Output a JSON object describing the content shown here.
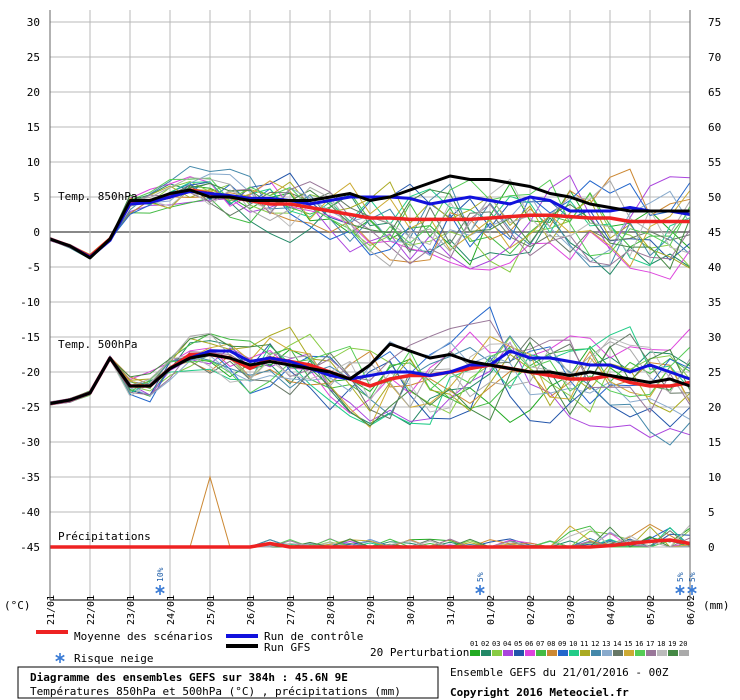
{
  "chart_data": {
    "type": "line",
    "title": "Diagramme des ensembles GEFS sur 384h : 45.6N 9E",
    "subtitle": "Températures 850hPa et 500hPa (°C) , précipitations (mm)",
    "run_info": "Ensemble GEFS du 21/01/2016 - 00Z",
    "copyright": "Copyright 2016 Meteociel.fr",
    "y_left_label": "(°C)",
    "y_right_label": "(mm)",
    "y_left_ticks": [
      "30",
      "25",
      "20",
      "15",
      "10",
      "5",
      "0",
      "-5",
      "-10",
      "-15",
      "-20",
      "-25",
      "-30",
      "-35",
      "-40",
      "-45"
    ],
    "y_right_ticks": [
      "75",
      "70",
      "65",
      "60",
      "55",
      "50",
      "45",
      "40",
      "35",
      "30",
      "25",
      "20",
      "15",
      "10",
      "5",
      "0"
    ],
    "ylim_left": [
      -45,
      30
    ],
    "x_ticks": [
      "21/01",
      "22/01",
      "23/01",
      "24/01",
      "25/01",
      "26/01",
      "27/01",
      "28/01",
      "29/01",
      "30/01",
      "31/01",
      "01/02",
      "02/02",
      "03/02",
      "04/02",
      "05/02",
      "06/02"
    ],
    "x": [
      0,
      12,
      24,
      36,
      48,
      60,
      72,
      84,
      96,
      108,
      120,
      132,
      144,
      156,
      168,
      180,
      192,
      204,
      216,
      228,
      240,
      252,
      264,
      276,
      288,
      300,
      312,
      324,
      336,
      348,
      360,
      372,
      384
    ],
    "section_labels": {
      "t850": "Temp. 850hPa",
      "t500": "Temp. 500hPa",
      "precip": "Précipitations"
    },
    "snow_risk": [
      {
        "date_index": 2,
        "label": "10%"
      },
      {
        "date_index": 10,
        "label": "5%"
      },
      {
        "date_index": 15,
        "label": "5%"
      },
      {
        "date_index": 15.3,
        "label": "5%"
      }
    ],
    "legend": {
      "mean": "Moyenne des scénarios",
      "control": "Run de contrôle",
      "gfs": "Run GFS",
      "snow": "Risque neige",
      "perturbations": "20 Perturbations",
      "perturbation_ids": [
        "01",
        "02",
        "03",
        "04",
        "05",
        "06",
        "07",
        "08",
        "09",
        "10",
        "11",
        "12",
        "13",
        "14",
        "15",
        "16",
        "17",
        "18",
        "19",
        "20"
      ]
    },
    "colors": {
      "mean": "#ee2222",
      "control": "#1111dd",
      "gfs": "#000000",
      "grid": "#999999",
      "zero_line": "#888888",
      "perturbations": [
        "#22aa22",
        "#228866",
        "#88cc44",
        "#aa44dd",
        "#2255aa",
        "#dd44dd",
        "#44bb44",
        "#cc8833",
        "#2266cc",
        "#22cc88",
        "#aaaa22",
        "#4488aa",
        "#88aacc",
        "#667766",
        "#ccaa33",
        "#55cc55",
        "#997799",
        "#bbbbbb",
        "#448844",
        "#aaaaaa"
      ]
    },
    "series": [
      {
        "name": "Moyenne des scénarios",
        "level": "850hPa",
        "values": [
          -1,
          -2,
          -3.5,
          -1,
          4,
          4.5,
          5,
          6,
          5.5,
          5,
          4.5,
          4,
          4,
          3.5,
          3,
          2.5,
          2,
          2,
          1.8,
          1.8,
          1.8,
          1.8,
          2,
          2.2,
          2.4,
          2.4,
          2.2,
          2.0,
          2.0,
          1.5,
          1.5,
          1.5,
          1.5
        ]
      },
      {
        "name": "Run de contrôle",
        "level": "850hPa",
        "values": [
          -1,
          -2,
          -3.6,
          -1.2,
          4,
          4.2,
          5,
          5.8,
          5.5,
          5.2,
          4.8,
          4.8,
          4.5,
          4,
          4.5,
          5,
          5,
          5,
          4.8,
          4,
          4.5,
          5,
          4.5,
          4,
          5,
          4.5,
          3,
          3,
          3,
          3.5,
          3,
          3,
          2.5
        ]
      },
      {
        "name": "Run GFS",
        "level": "850hPa",
        "values": [
          -1,
          -2,
          -3.7,
          -1,
          4.5,
          4.5,
          5.5,
          6,
          5,
          5,
          4.5,
          4.5,
          4.5,
          4.5,
          5,
          5.5,
          4.5,
          5,
          6,
          7,
          8,
          7.5,
          7.5,
          7,
          6.5,
          5.5,
          5,
          4,
          3.5,
          3,
          3,
          3,
          3
        ]
      },
      {
        "name": "Moyenne des scénarios",
        "level": "500hPa",
        "values": [
          -24.5,
          -24,
          -23,
          -18,
          -22,
          -22,
          -19.5,
          -17.5,
          -17.5,
          -18,
          -19.5,
          -18,
          -18.5,
          -19,
          -20,
          -21,
          -22,
          -21,
          -20.5,
          -20.5,
          -20,
          -19.5,
          -19,
          -19.5,
          -20,
          -20.5,
          -21,
          -21,
          -20.5,
          -21.5,
          -22,
          -22,
          -21.5
        ]
      },
      {
        "name": "Run de contrôle",
        "level": "500hPa",
        "values": [
          -24.5,
          -24,
          -23,
          -18,
          -22,
          -22,
          -19.5,
          -18,
          -17,
          -17,
          -18.5,
          -18,
          -18.5,
          -19.5,
          -20.5,
          -21,
          -20.5,
          -20,
          -20,
          -20.5,
          -20,
          -19,
          -19,
          -17,
          -18,
          -18,
          -18.5,
          -19,
          -19,
          -20,
          -19,
          -20,
          -21
        ]
      },
      {
        "name": "Run GFS",
        "level": "500hPa",
        "values": [
          -24.5,
          -24,
          -23,
          -18,
          -22,
          -22,
          -19.5,
          -18,
          -17.5,
          -18,
          -19,
          -18.5,
          -19,
          -19.5,
          -20,
          -21,
          -19,
          -16,
          -17,
          -18,
          -17.5,
          -18.5,
          -19,
          -19.5,
          -20,
          -20,
          -20.5,
          -20,
          -20.5,
          -21,
          -21.5,
          -21,
          -22
        ]
      },
      {
        "name": "Moyenne des scénarios",
        "level": "precip_mm",
        "values": [
          0,
          0,
          0,
          0,
          0,
          0,
          0,
          0,
          0,
          0,
          0,
          0.5,
          0,
          0,
          0,
          0,
          0,
          0,
          0,
          0,
          0,
          0,
          0,
          0,
          0,
          0,
          0,
          0,
          0.2,
          0.5,
          0.8,
          1,
          0.5
        ]
      }
    ]
  }
}
